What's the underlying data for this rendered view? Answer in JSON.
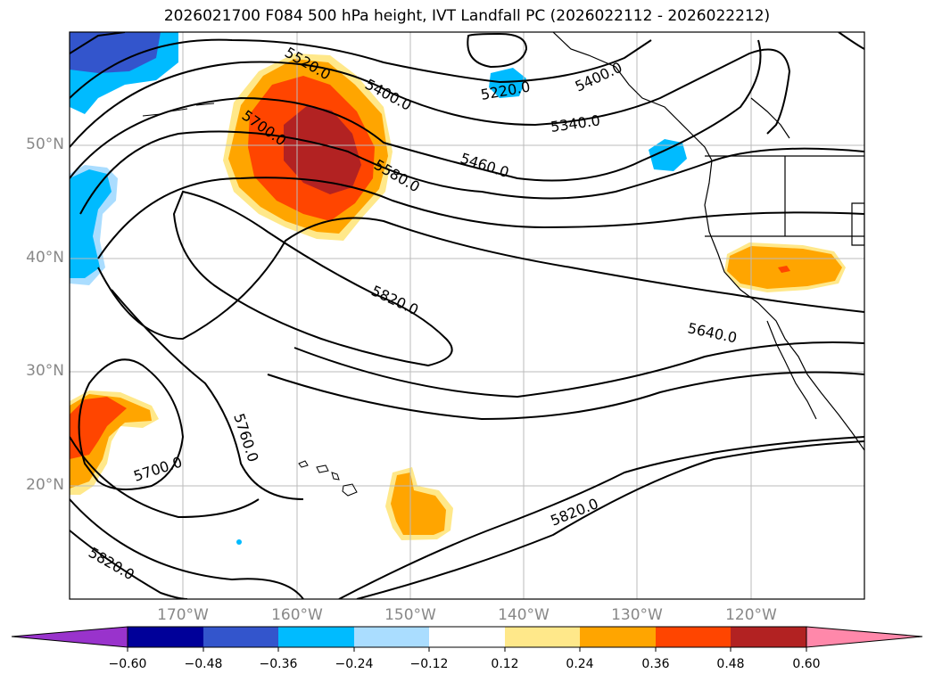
{
  "title": "2026021700 F084 500 hPa height, IVT Landfall PC (2026022112 - 2026022212)",
  "axes": {
    "lat_labels": [
      "50°N",
      "40°N",
      "30°N",
      "20°N"
    ],
    "lon_labels": [
      "170°W",
      "160°W",
      "150°W",
      "140°W",
      "130°W",
      "120°W"
    ]
  },
  "contour_labels": [
    "5520.0",
    "5400.0",
    "5220.0",
    "5340.0",
    "5700.0",
    "5580.0",
    "5460.0",
    "5820.0",
    "5640.0",
    "5760.0",
    "5700.0",
    "5820.0",
    "5820.0",
    "5400.0"
  ],
  "colorbar": {
    "ticks": [
      "−0.60",
      "−0.48",
      "−0.36",
      "−0.24",
      "−0.12",
      "0.12",
      "0.24",
      "0.36",
      "0.48",
      "0.60"
    ],
    "colors": [
      "#9933cc",
      "#000099",
      "#3355cc",
      "#00bbff",
      "#aaddff",
      "#ffffff",
      "#ffe88a",
      "#ffa500",
      "#ff4500",
      "#b22222",
      "#ff88aa"
    ]
  },
  "field_colors": {
    "pos_light": "#ffe88a",
    "pos_mid": "#ffa500",
    "pos_high": "#ff4500",
    "pos_max": "#b22222",
    "neg_light": "#aaddff",
    "neg_mid": "#00bbff",
    "neg_high": "#3355cc"
  }
}
